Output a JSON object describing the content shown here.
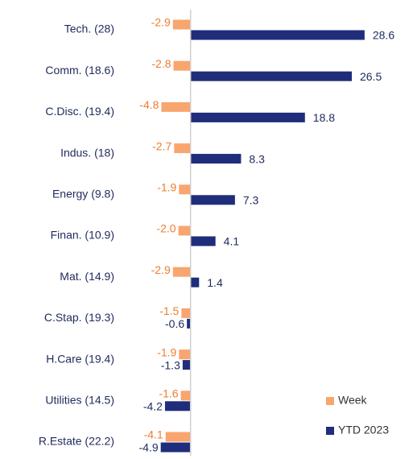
{
  "chart_data": {
    "type": "hbar",
    "categories": [
      "Tech. (28)",
      "Comm. (18.6)",
      "C.Disc. (19.4)",
      "Indus. (18)",
      "Energy (9.8)",
      "Finan. (10.9)",
      "Mat. (14.9)",
      "C.Stap. (19.3)",
      "H.Care (19.4)",
      "Utilities (14.5)",
      "R.Estate (22.2)"
    ],
    "series": [
      {
        "name": "Week",
        "color": "#f8a56e",
        "label_color": "#ee7d2e",
        "values": [
          -2.9,
          -2.8,
          -4.8,
          -2.7,
          -1.9,
          -2.0,
          -2.9,
          -1.5,
          -1.9,
          -1.6,
          -4.1
        ],
        "value_labels": [
          "-2.9",
          "-2.8",
          "-4.8",
          "-2.7",
          "-1.9",
          "-2.0",
          "-2.9",
          "-1.5",
          "-1.9",
          "-1.6",
          "-4.1"
        ]
      },
      {
        "name": "YTD 2023",
        "color": "#1f2d7b",
        "label_color": "#1f2a5c",
        "values": [
          28.6,
          26.5,
          18.8,
          8.3,
          7.3,
          4.1,
          1.4,
          -0.6,
          -1.3,
          -4.2,
          -4.9
        ]
      }
    ],
    "xlim": [
      -7.5,
      31
    ],
    "legend": "lower right"
  }
}
